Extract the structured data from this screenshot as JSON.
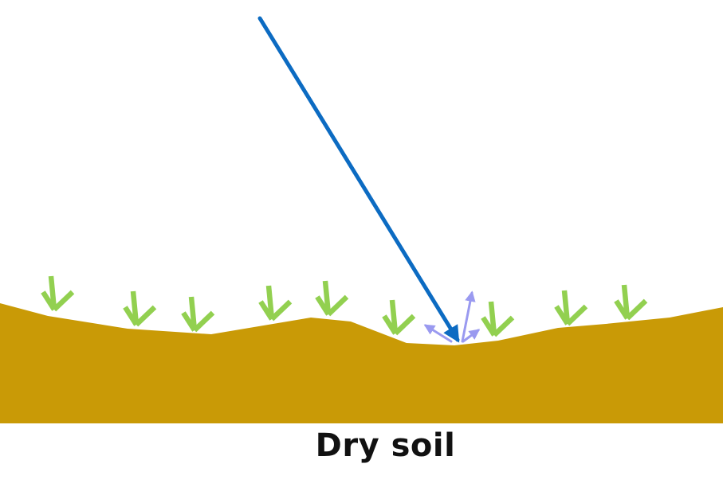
{
  "caption": "Dry soil",
  "colors": {
    "soil": "#C99A06",
    "plant": "#92D050",
    "incoming_ray": "#0C6BC2",
    "scattered_ray": "#9A9AF0",
    "background": "#FFFFFF"
  },
  "elements": {
    "soil": "soil-body",
    "plants": "plant-sprout-icon",
    "incoming_ray": "incoming-radiation-arrow",
    "scattered_rays": "scattered-radiation-arrows"
  }
}
